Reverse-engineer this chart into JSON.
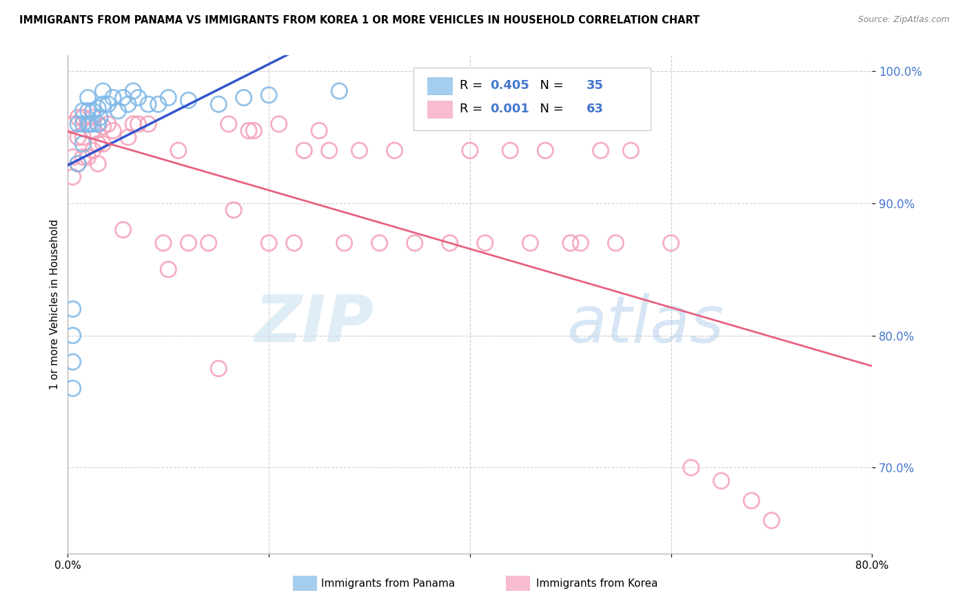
{
  "title": "IMMIGRANTS FROM PANAMA VS IMMIGRANTS FROM KOREA 1 OR MORE VEHICLES IN HOUSEHOLD CORRELATION CHART",
  "source": "Source: ZipAtlas.com",
  "ylabel": "1 or more Vehicles in Household",
  "xmin": 0.0,
  "xmax": 0.8,
  "ymin": 0.635,
  "ymax": 1.012,
  "yticks": [
    0.7,
    0.8,
    0.9,
    1.0
  ],
  "ytick_labels": [
    "70.0%",
    "80.0%",
    "90.0%",
    "100.0%"
  ],
  "xticks": [
    0.0,
    0.2,
    0.4,
    0.6,
    0.8
  ],
  "xtick_labels": [
    "0.0%",
    "",
    "",
    "",
    "80.0%"
  ],
  "panama_color": "#7fb8e8",
  "korea_color": "#f4a0b8",
  "panama_R": 0.405,
  "panama_N": 35,
  "korea_R": 0.001,
  "korea_N": 63,
  "panama_line_color": "#3355cc",
  "korea_line_color": "#e86080",
  "panama_x": [
    0.005,
    0.005,
    0.005,
    0.005,
    0.01,
    0.01,
    0.015,
    0.015,
    0.015,
    0.02,
    0.02,
    0.02,
    0.022,
    0.025,
    0.025,
    0.03,
    0.03,
    0.032,
    0.035,
    0.035,
    0.04,
    0.045,
    0.05,
    0.055,
    0.06,
    0.065,
    0.07,
    0.08,
    0.09,
    0.1,
    0.12,
    0.15,
    0.175,
    0.2,
    0.27
  ],
  "panama_y": [
    0.76,
    0.78,
    0.8,
    0.82,
    0.93,
    0.96,
    0.945,
    0.96,
    0.97,
    0.96,
    0.97,
    0.98,
    0.96,
    0.96,
    0.97,
    0.96,
    0.972,
    0.965,
    0.975,
    0.985,
    0.975,
    0.98,
    0.97,
    0.98,
    0.975,
    0.985,
    0.98,
    0.975,
    0.975,
    0.98,
    0.978,
    0.975,
    0.98,
    0.982,
    0.985
  ],
  "korea_x": [
    0.005,
    0.005,
    0.005,
    0.01,
    0.01,
    0.01,
    0.015,
    0.015,
    0.015,
    0.02,
    0.02,
    0.025,
    0.025,
    0.025,
    0.03,
    0.03,
    0.03,
    0.035,
    0.035,
    0.04,
    0.045,
    0.055,
    0.06,
    0.065,
    0.07,
    0.08,
    0.095,
    0.1,
    0.11,
    0.12,
    0.14,
    0.15,
    0.16,
    0.165,
    0.18,
    0.185,
    0.2,
    0.21,
    0.225,
    0.235,
    0.25,
    0.26,
    0.275,
    0.29,
    0.31,
    0.325,
    0.345,
    0.38,
    0.4,
    0.415,
    0.44,
    0.46,
    0.475,
    0.5,
    0.51,
    0.53,
    0.545,
    0.56,
    0.6,
    0.62,
    0.65,
    0.68,
    0.7
  ],
  "korea_y": [
    0.92,
    0.935,
    0.96,
    0.93,
    0.95,
    0.965,
    0.935,
    0.95,
    0.965,
    0.935,
    0.96,
    0.94,
    0.955,
    0.965,
    0.93,
    0.945,
    0.96,
    0.945,
    0.958,
    0.96,
    0.955,
    0.88,
    0.95,
    0.96,
    0.96,
    0.96,
    0.87,
    0.85,
    0.94,
    0.87,
    0.87,
    0.775,
    0.96,
    0.895,
    0.955,
    0.955,
    0.87,
    0.96,
    0.87,
    0.94,
    0.955,
    0.94,
    0.87,
    0.94,
    0.87,
    0.94,
    0.87,
    0.87,
    0.94,
    0.87,
    0.94,
    0.87,
    0.94,
    0.87,
    0.87,
    0.94,
    0.87,
    0.94,
    0.87,
    0.7,
    0.69,
    0.675,
    0.66
  ]
}
